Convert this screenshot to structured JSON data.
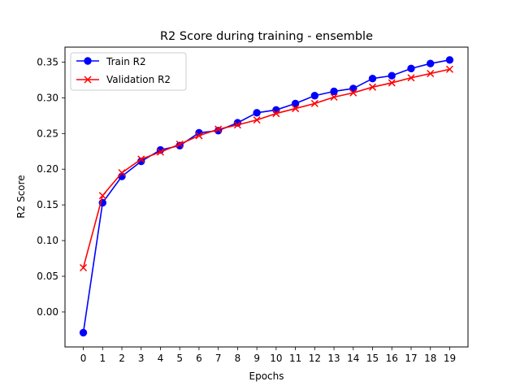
{
  "chart_data": {
    "type": "line",
    "title": "R2 Score during training - ensemble",
    "xlabel": "Epochs",
    "ylabel": "R2 Score",
    "x": [
      0,
      1,
      2,
      3,
      4,
      5,
      6,
      7,
      8,
      9,
      10,
      11,
      12,
      13,
      14,
      15,
      16,
      17,
      18,
      19
    ],
    "xlim": [
      -0.95,
      19.95
    ],
    "ylim": [
      -0.049,
      0.371
    ],
    "yticks": [
      0.0,
      0.05,
      0.1,
      0.15,
      0.2,
      0.25,
      0.3,
      0.35
    ],
    "ytick_labels": [
      "0.00",
      "0.05",
      "0.10",
      "0.15",
      "0.20",
      "0.25",
      "0.30",
      "0.35"
    ],
    "grid": false,
    "legend_position": "top-left",
    "series": [
      {
        "name": "Train R2",
        "color": "#0000ff",
        "marker": "circle",
        "values": [
          -0.029,
          0.153,
          0.19,
          0.211,
          0.227,
          0.233,
          0.251,
          0.254,
          0.265,
          0.279,
          0.283,
          0.292,
          0.303,
          0.309,
          0.313,
          0.327,
          0.331,
          0.341,
          0.348,
          0.353
        ]
      },
      {
        "name": "Validation R2",
        "color": "#ff0000",
        "marker": "x",
        "values": [
          0.062,
          0.163,
          0.195,
          0.214,
          0.224,
          0.235,
          0.247,
          0.256,
          0.262,
          0.269,
          0.278,
          0.285,
          0.292,
          0.301,
          0.307,
          0.315,
          0.321,
          0.328,
          0.334,
          0.34
        ]
      }
    ]
  }
}
